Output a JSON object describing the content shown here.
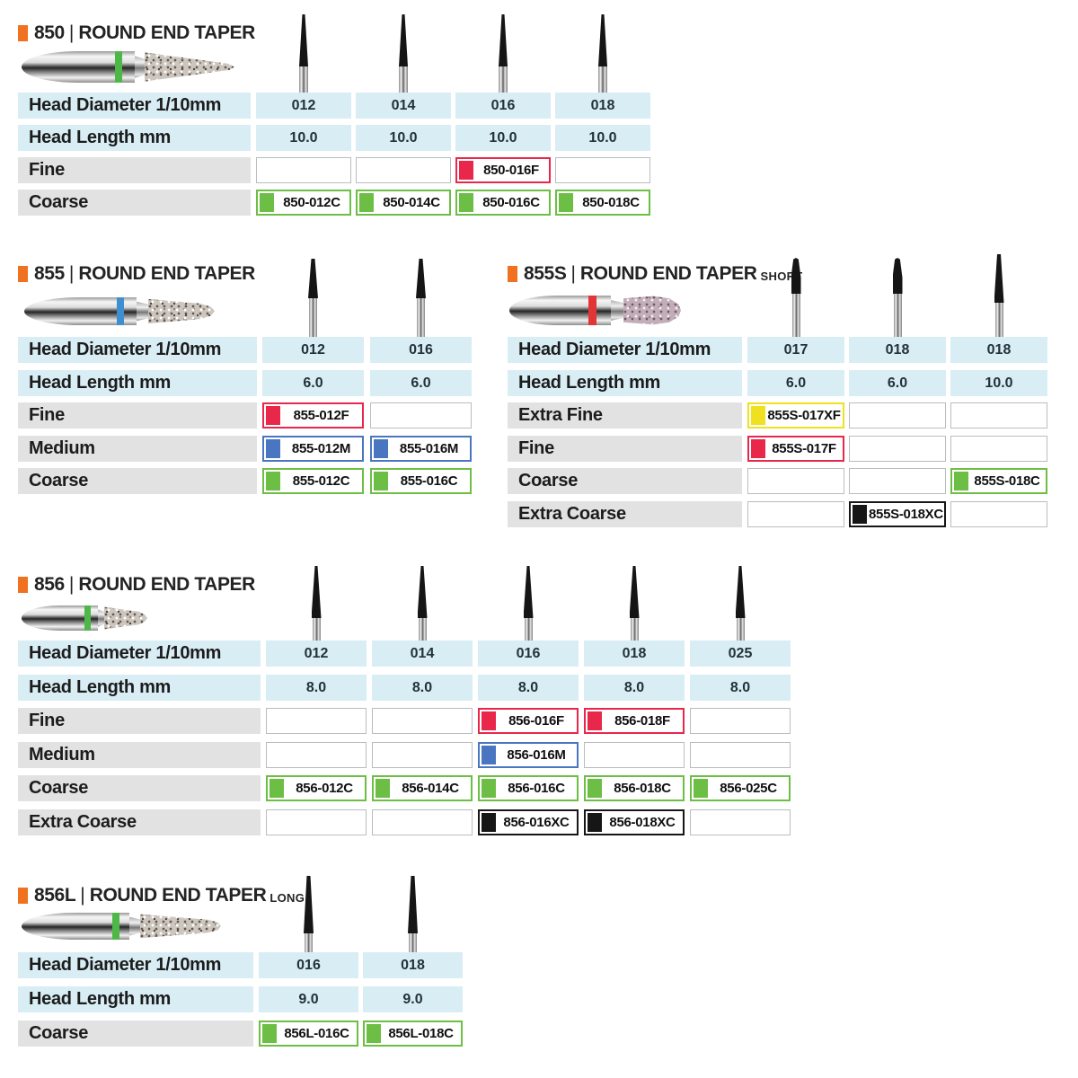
{
  "colors": {
    "orange": "#F0711F",
    "light_blue": "#D9EDF5",
    "row_gray": "#E2E2E2",
    "red": "#E8274B",
    "green": "#6CBE45",
    "blue": "#4A76C1",
    "yellow": "#EFE11F",
    "black": "#161616",
    "band_green": "#4DB748",
    "band_blue": "#3E8ED0",
    "band_red": "#E23535",
    "empty_border": "#B9BDC0",
    "title_text": "#232323"
  },
  "sections": [
    {
      "number": "850",
      "pipe": "|",
      "name": "ROUND END TAPER",
      "suffix": "",
      "head_diameter_label": "Head Diameter 1/10mm",
      "head_length_label": "Head Length mm",
      "band_color": "band_green",
      "columns": [
        "012",
        "014",
        "016",
        "018"
      ],
      "head_lengths": [
        "10.0",
        "10.0",
        "10.0",
        "10.0"
      ],
      "grit_rows": [
        {
          "label": "Fine",
          "color": "red",
          "cells": [
            "",
            "",
            "850-016F",
            ""
          ]
        },
        {
          "label": "Coarse",
          "color": "green",
          "cells": [
            "850-012C",
            "850-014C",
            "850-016C",
            "850-018C"
          ]
        }
      ]
    },
    {
      "number": "855",
      "pipe": "|",
      "name": "ROUND END TAPER",
      "suffix": "",
      "head_diameter_label": "Head Diameter 1/10mm",
      "head_length_label": "Head Length mm",
      "band_color": "band_blue",
      "columns": [
        "012",
        "016"
      ],
      "head_lengths": [
        "6.0",
        "6.0"
      ],
      "grit_rows": [
        {
          "label": "Fine",
          "color": "red",
          "cells": [
            "855-012F",
            ""
          ]
        },
        {
          "label": "Medium",
          "color": "blue",
          "cells": [
            "855-012M",
            "855-016M"
          ]
        },
        {
          "label": "Coarse",
          "color": "green",
          "cells": [
            "855-012C",
            "855-016C"
          ]
        }
      ]
    },
    {
      "number": "855S",
      "pipe": "|",
      "name": "ROUND END TAPER",
      "suffix": "SHORT",
      "head_diameter_label": "Head Diameter 1/10mm",
      "head_length_label": "Head Length mm",
      "band_color": "band_red",
      "columns": [
        "017",
        "018",
        "018"
      ],
      "head_lengths": [
        "6.0",
        "6.0",
        "10.0"
      ],
      "grit_rows": [
        {
          "label": "Extra Fine",
          "color": "yellow",
          "cells": [
            "855S-017XF",
            "",
            ""
          ]
        },
        {
          "label": "Fine",
          "color": "red",
          "cells": [
            "855S-017F",
            "",
            ""
          ]
        },
        {
          "label": "Coarse",
          "color": "green",
          "cells": [
            "",
            "",
            "855S-018C"
          ]
        },
        {
          "label": "Extra Coarse",
          "color": "black",
          "cells": [
            "",
            "855S-018XC",
            ""
          ]
        }
      ]
    },
    {
      "number": "856",
      "pipe": "|",
      "name": "ROUND END TAPER",
      "suffix": "",
      "head_diameter_label": "Head Diameter 1/10mm",
      "head_length_label": "Head Length mm",
      "band_color": "band_green",
      "columns": [
        "012",
        "014",
        "016",
        "018",
        "025"
      ],
      "head_lengths": [
        "8.0",
        "8.0",
        "8.0",
        "8.0",
        "8.0"
      ],
      "grit_rows": [
        {
          "label": "Fine",
          "color": "red",
          "cells": [
            "",
            "",
            "856-016F",
            "856-018F",
            ""
          ]
        },
        {
          "label": "Medium",
          "color": "blue",
          "cells": [
            "",
            "",
            "856-016M",
            "",
            ""
          ]
        },
        {
          "label": "Coarse",
          "color": "green",
          "cells": [
            "856-012C",
            "856-014C",
            "856-016C",
            "856-018C",
            "856-025C"
          ]
        },
        {
          "label": "Extra Coarse",
          "color": "black",
          "cells": [
            "",
            "",
            "856-016XC",
            "856-018XC",
            ""
          ]
        }
      ]
    },
    {
      "number": "856L",
      "pipe": "|",
      "name": "ROUND END TAPER",
      "suffix": "LONG",
      "head_diameter_label": "Head Diameter 1/10mm",
      "head_length_label": "Head Length mm",
      "band_color": "band_green",
      "columns": [
        "016",
        "018"
      ],
      "head_lengths": [
        "9.0",
        "9.0"
      ],
      "grit_rows": [
        {
          "label": "Coarse",
          "color": "green",
          "cells": [
            "856L-016C",
            "856L-018C"
          ]
        }
      ]
    }
  ]
}
